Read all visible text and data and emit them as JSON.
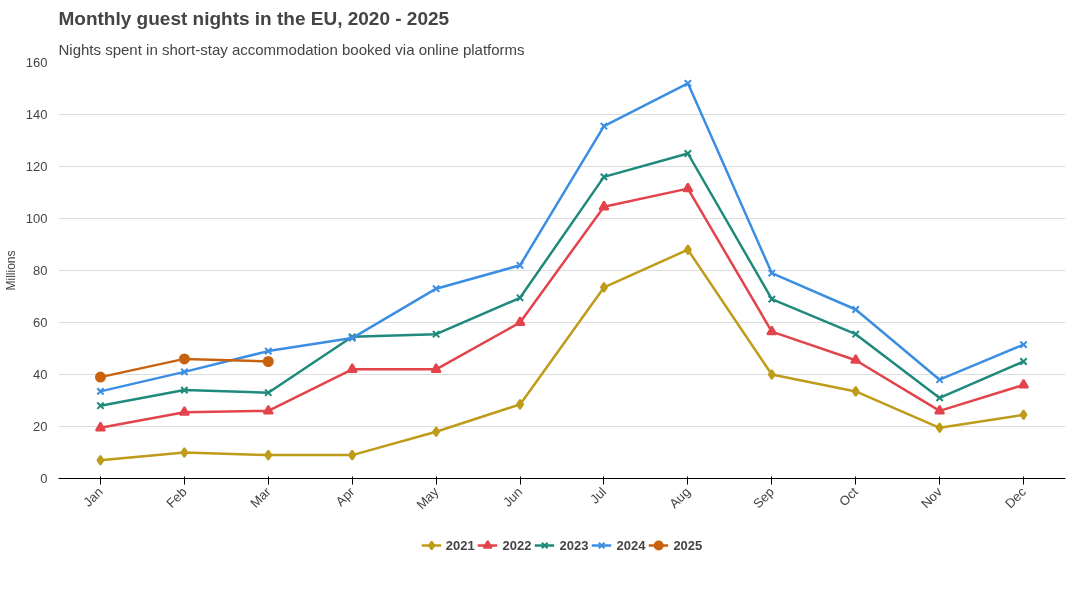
{
  "chart_data": {
    "type": "line",
    "title": "Monthly guest nights in the EU, 2020 - 2025",
    "subtitle": "Nights spent in short-stay accommodation booked via online platforms",
    "ylabel": "Millions",
    "categories": [
      "Jan",
      "Feb",
      "Mar",
      "Apr",
      "May",
      "Jun",
      "Jul",
      "Aug",
      "Sep",
      "Oct",
      "Nov",
      "Dec"
    ],
    "ylim": [
      0,
      160
    ],
    "yticks": [
      0,
      20,
      40,
      60,
      80,
      100,
      120,
      140,
      160
    ],
    "grid": "y",
    "legend": "bottom",
    "line_style": "solid",
    "series": [
      {
        "name": "2021",
        "color": "#bf9b1a",
        "marker": "diamond",
        "values": [
          7,
          10,
          9,
          9,
          18,
          28.5,
          73.5,
          88,
          40,
          33.5,
          19.5,
          24.5
        ]
      },
      {
        "name": "2022",
        "color": "#e3434b",
        "marker": "triangle",
        "values": [
          19.5,
          25.5,
          26,
          42,
          42,
          60,
          104.5,
          111.5,
          56.5,
          45.5,
          26,
          36
        ]
      },
      {
        "name": "2023",
        "color": "#1f8a7c",
        "marker": "cross",
        "values": [
          28,
          34,
          33,
          54.5,
          55.5,
          69.5,
          116,
          125,
          69,
          55.5,
          31,
          45
        ]
      },
      {
        "name": "2024",
        "color": "#3b8ee2",
        "marker": "cross",
        "values": [
          33.5,
          41,
          49,
          54,
          73,
          82,
          135.5,
          152,
          79,
          65,
          38,
          51.5
        ]
      },
      {
        "name": "2025",
        "color": "#c8620e",
        "marker": "circle",
        "values": [
          39,
          46,
          45,
          null,
          null,
          null,
          null,
          null,
          null,
          null,
          null,
          null
        ]
      }
    ]
  }
}
